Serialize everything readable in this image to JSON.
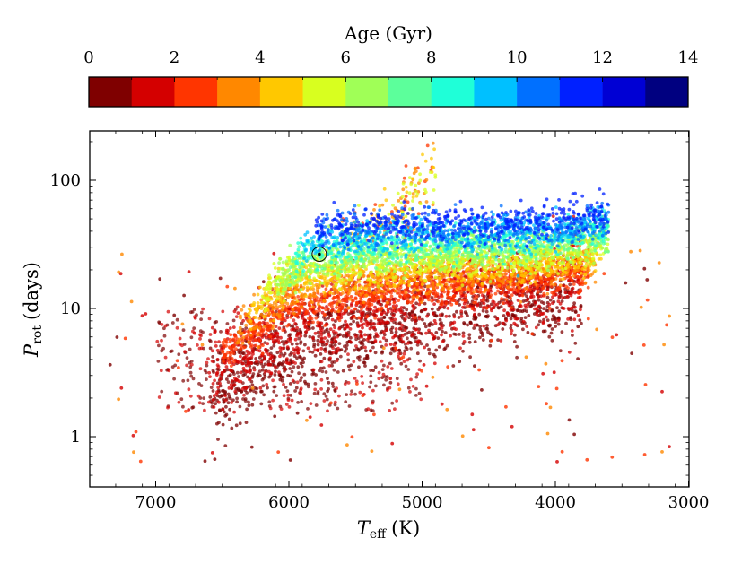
{
  "chart_data": [
    {
      "type": "colorbar",
      "label": "Age (Gyr)",
      "range": [
        0,
        14
      ],
      "tick_labels": [
        "0",
        "2",
        "4",
        "6",
        "8",
        "10",
        "12",
        "14"
      ],
      "tick_values": [
        0,
        2,
        4,
        6,
        8,
        10,
        12,
        14
      ],
      "bins": [
        {
          "from": 0,
          "to": 1,
          "color": "#7f0000"
        },
        {
          "from": 1,
          "to": 2,
          "color": "#d40000"
        },
        {
          "from": 2,
          "to": 3,
          "color": "#ff3500"
        },
        {
          "from": 3,
          "to": 4,
          "color": "#ff8800"
        },
        {
          "from": 4,
          "to": 5,
          "color": "#ffc800"
        },
        {
          "from": 5,
          "to": 6,
          "color": "#d8ff1f"
        },
        {
          "from": 6,
          "to": 7,
          "color": "#a0ff57"
        },
        {
          "from": 7,
          "to": 8,
          "color": "#5cff9b"
        },
        {
          "from": 8,
          "to": 9,
          "color": "#1fffd8"
        },
        {
          "from": 9,
          "to": 10,
          "color": "#00c0ff"
        },
        {
          "from": 10,
          "to": 11,
          "color": "#0070ff"
        },
        {
          "from": 11,
          "to": 12,
          "color": "#0020ff"
        },
        {
          "from": 12,
          "to": 13,
          "color": "#0000d4"
        },
        {
          "from": 13,
          "to": 14,
          "color": "#000080"
        }
      ]
    },
    {
      "type": "scatter",
      "xlabel": "T",
      "xlabel_sub": "eff",
      "xlabel_unit": "(K)",
      "ylabel": "P",
      "ylabel_sub": "rot",
      "ylabel_unit": "(days)",
      "xlim": [
        7500,
        3000
      ],
      "x_inverted": true,
      "yscale": "log",
      "ylim": [
        0.4,
        250
      ],
      "x_ticks": [
        7000,
        6000,
        5000,
        4000,
        3000
      ],
      "x_tick_labels": [
        "7000",
        "6000",
        "5000",
        "4000",
        "3000"
      ],
      "y_ticks": [
        1,
        10,
        100
      ],
      "y_tick_labels": [
        "1",
        "10",
        "100"
      ],
      "colored_by": "Age (Gyr)",
      "trend_bands": [
        {
          "age_gyr": 0.5,
          "prot_at_teff": [
            [
              6600,
              2.0
            ],
            [
              6000,
              4.5
            ],
            [
              5500,
              6.5
            ],
            [
              5000,
              8.0
            ],
            [
              4500,
              9.5
            ],
            [
              4000,
              11.0
            ],
            [
              3800,
              12.0
            ]
          ]
        },
        {
          "age_gyr": 1.5,
          "prot_at_teff": [
            [
              6600,
              3.0
            ],
            [
              6000,
              7.0
            ],
            [
              5500,
              9.5
            ],
            [
              5000,
              11.5
            ],
            [
              4500,
              13.5
            ],
            [
              4000,
              15.0
            ],
            [
              3800,
              16.0
            ]
          ]
        },
        {
          "age_gyr": 2.5,
          "prot_at_teff": [
            [
              6500,
              4.5
            ],
            [
              6000,
              10.0
            ],
            [
              5500,
              12.5
            ],
            [
              5000,
              14.0
            ],
            [
              4500,
              15.5
            ],
            [
              4000,
              17.0
            ],
            [
              3750,
              20.0
            ]
          ]
        },
        {
          "age_gyr": 3.5,
          "prot_at_teff": [
            [
              6400,
              6.5
            ],
            [
              6000,
              13.0
            ],
            [
              5500,
              16.0
            ],
            [
              5000,
              17.5
            ],
            [
              4500,
              19.0
            ],
            [
              4000,
              20.0
            ],
            [
              3700,
              24.0
            ]
          ]
        },
        {
          "age_gyr": 4.5,
          "prot_at_teff": [
            [
              6300,
              9.0
            ],
            [
              6000,
              16.0
            ],
            [
              5500,
              19.0
            ],
            [
              5000,
              21.0
            ],
            [
              4500,
              22.0
            ],
            [
              4000,
              23.0
            ],
            [
              3650,
              28.0
            ]
          ]
        },
        {
          "age_gyr": 5.5,
          "prot_at_teff": [
            [
              6200,
              12.0
            ],
            [
              6000,
              19.0
            ],
            [
              5500,
              22.0
            ],
            [
              5000,
              24.0
            ],
            [
              4500,
              25.0
            ],
            [
              4000,
              26.5
            ],
            [
              3600,
              32.0
            ]
          ]
        },
        {
          "age_gyr": 6.5,
          "prot_at_teff": [
            [
              6100,
              16.0
            ],
            [
              5800,
              23.0
            ],
            [
              5500,
              25.0
            ],
            [
              5000,
              27.0
            ],
            [
              4500,
              28.0
            ],
            [
              4000,
              30.0
            ],
            [
              3600,
              36.0
            ]
          ]
        },
        {
          "age_gyr": 7.5,
          "prot_at_teff": [
            [
              6000,
              21.0
            ],
            [
              5800,
              26.0
            ],
            [
              5500,
              28.0
            ],
            [
              5000,
              30.0
            ],
            [
              4500,
              31.0
            ],
            [
              4000,
              33.0
            ],
            [
              3600,
              40.0
            ]
          ]
        },
        {
          "age_gyr": 8.5,
          "prot_at_teff": [
            [
              5950,
              26.0
            ],
            [
              5700,
              30.0
            ],
            [
              5500,
              31.0
            ],
            [
              5000,
              33.0
            ],
            [
              4500,
              34.0
            ],
            [
              4000,
              36.0
            ],
            [
              3600,
              44.0
            ]
          ]
        },
        {
          "age_gyr": 9.5,
          "prot_at_teff": [
            [
              5900,
              31.0
            ],
            [
              5700,
              34.0
            ],
            [
              5500,
              35.0
            ],
            [
              5000,
              37.0
            ],
            [
              4500,
              38.0
            ],
            [
              4000,
              40.0
            ],
            [
              3600,
              47.0
            ]
          ]
        },
        {
          "age_gyr": 10.5,
          "prot_at_teff": [
            [
              5800,
              37.0
            ],
            [
              5500,
              40.0
            ],
            [
              5000,
              41.0
            ],
            [
              4500,
              42.0
            ],
            [
              4000,
              43.0
            ],
            [
              3600,
              50.0
            ]
          ]
        },
        {
          "age_gyr": 11.5,
          "prot_at_teff": [
            [
              5800,
              43.0
            ],
            [
              5500,
              45.0
            ],
            [
              5000,
              46.0
            ],
            [
              4500,
              46.0
            ],
            [
              4000,
              47.0
            ],
            [
              3600,
              54.0
            ]
          ]
        }
      ],
      "subgiant_branch": {
        "prot_at_teff": [
          [
            5600,
            35.0
          ],
          [
            5200,
            55.0
          ],
          [
            5000,
            90.0
          ],
          [
            4900,
            130.0
          ]
        ],
        "age_gyr_range": [
          2,
          6
        ]
      },
      "sun": {
        "teff": 5772,
        "prot": 26.5,
        "marker": "circled-dot"
      }
    }
  ]
}
